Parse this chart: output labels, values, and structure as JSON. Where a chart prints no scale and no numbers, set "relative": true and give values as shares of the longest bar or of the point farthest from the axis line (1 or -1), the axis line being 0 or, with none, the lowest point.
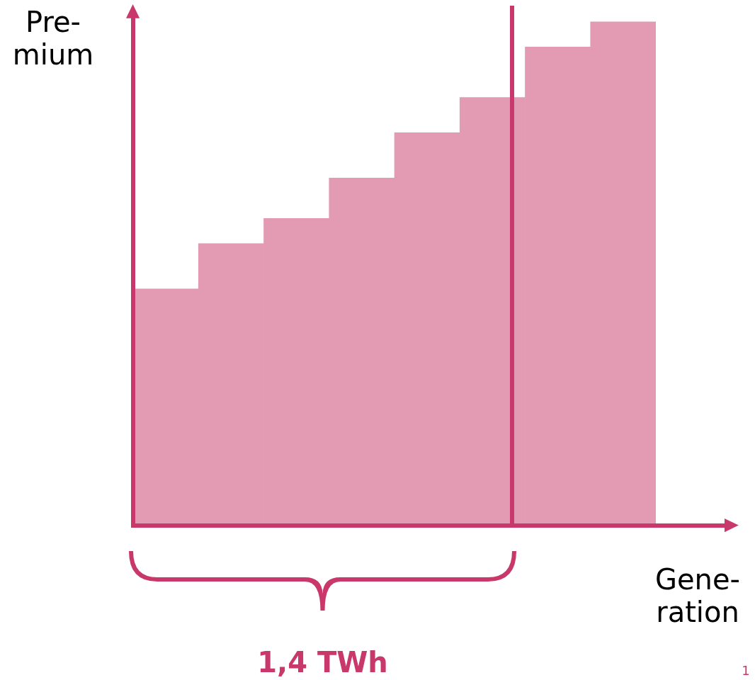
{
  "chart_data": {
    "type": "bar",
    "relative": true,
    "ylabel": "Pre-\nmium",
    "xlabel": "Gene-\nration",
    "categories": [
      null,
      null,
      null,
      null,
      null,
      null,
      null,
      null
    ],
    "values": [
      0.47,
      0.56,
      0.61,
      0.69,
      0.78,
      0.85,
      0.95,
      1
    ],
    "color": "#e39bb3",
    "tick_labels": false,
    "legend": false,
    "ref_lines": [
      {
        "axis": "x",
        "label": "1,4 TWh",
        "color": "#c8386a"
      }
    ],
    "annotations": [
      "1"
    ]
  }
}
